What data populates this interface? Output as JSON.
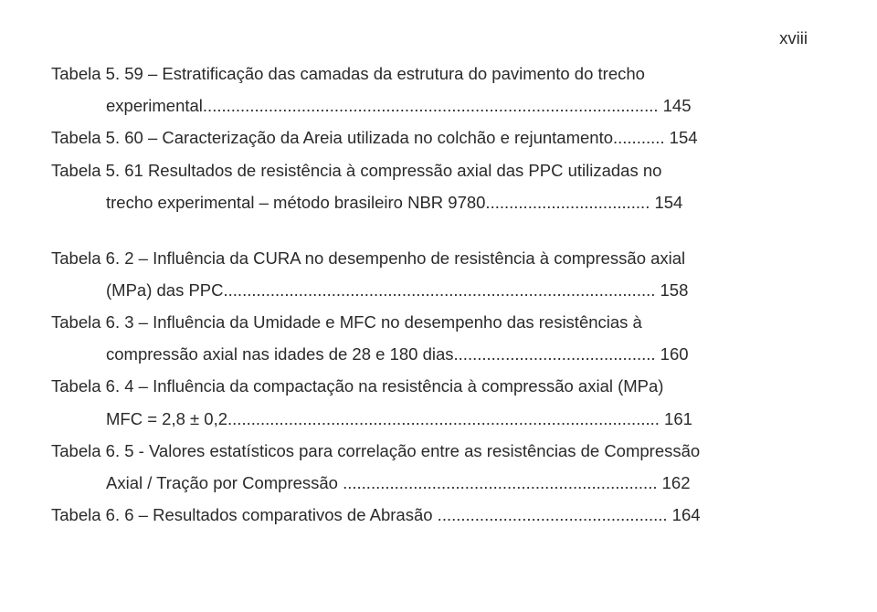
{
  "pageNumber": "xviii",
  "entries": [
    {
      "line1": "Tabela 5. 59 – Estratificação das camadas da estrutura do pavimento do trecho",
      "line2": "experimental................................................................................................. 145"
    },
    {
      "line1": "Tabela 5. 60 – Caracterização da Areia utilizada no colchão e rejuntamento........... 154"
    },
    {
      "line1": "Tabela 5. 61 Resultados de resistência à compressão axial das PPC utilizadas no",
      "line2": "trecho experimental – método brasileiro NBR 9780................................... 154"
    }
  ],
  "entries2": [
    {
      "line1": "Tabela 6. 2 – Influência da CURA no desempenho de resistência à compressão axial",
      "line2": "(MPa) das PPC............................................................................................ 158"
    },
    {
      "line1": "Tabela 6. 3 – Influência da Umidade e MFC no desempenho das resistências à",
      "line2": "compressão axial nas idades de 28 e 180 dias........................................... 160"
    },
    {
      "line1": "Tabela 6. 4 – Influência da compactação na resistência à compressão axial (MPa)",
      "line2": "MFC = 2,8 ± 0,2............................................................................................ 161"
    },
    {
      "line1": "Tabela 6. 5 - Valores estatísticos para correlação entre as resistências de Compressão",
      "line2": "Axial / Tração por Compressão ................................................................... 162"
    },
    {
      "line1": "Tabela 6. 6 – Resultados comparativos de Abrasão ................................................. 164"
    }
  ]
}
